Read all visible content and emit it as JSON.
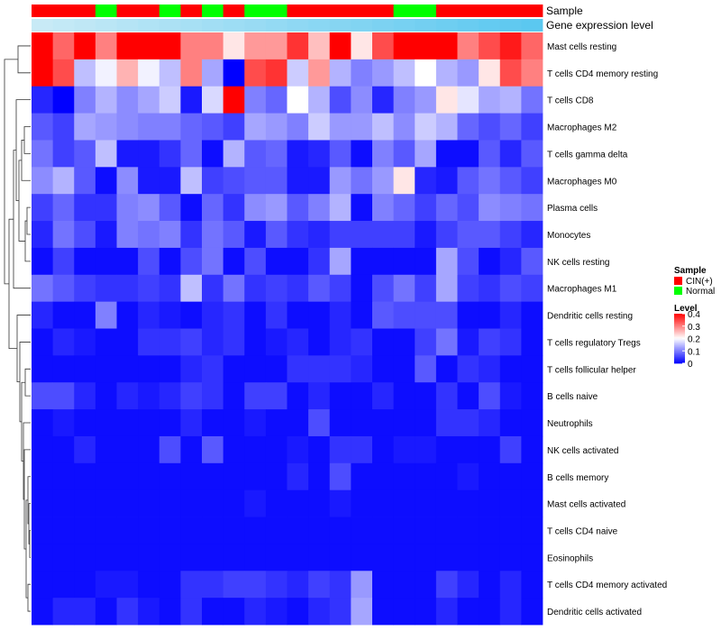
{
  "chart_data": {
    "type": "heatmap",
    "annotation_tracks": [
      {
        "name": "Sample",
        "labels": [
          "CIN(+)",
          "CIN(+)",
          "CIN(+)",
          "Normal",
          "CIN(+)",
          "CIN(+)",
          "Normal",
          "CIN(+)",
          "Normal",
          "CIN(+)",
          "Normal",
          "Normal",
          "CIN(+)",
          "CIN(+)",
          "CIN(+)",
          "CIN(+)",
          "CIN(+)",
          "Normal",
          "Normal",
          "CIN(+)",
          "CIN(+)",
          "CIN(+)",
          "CIN(+)",
          "CIN(+)"
        ]
      },
      {
        "name": "Gene expression level",
        "values": [
          0,
          1,
          2,
          3,
          4,
          5,
          6,
          7,
          8,
          9,
          10,
          11,
          12,
          13,
          14,
          15,
          16,
          17,
          18,
          19,
          20,
          21,
          22,
          23
        ]
      }
    ],
    "rows": [
      "Mast cells resting",
      "T cells CD4 memory resting",
      "T cells CD8",
      "Macrophages M2",
      "T cells gamma delta",
      "Macrophages M0",
      "Plasma cells",
      "Monocytes",
      "NK cells resting",
      "Macrophages M1",
      "Dendritic cells resting",
      "T cells regulatory  Tregs",
      "T cells follicular helper",
      "B cells naive",
      "Neutrophils",
      "NK cells activated",
      "B cells memory",
      "Mast cells activated",
      "T cells CD4 naive",
      "Eosinophils",
      "T cells CD4 memory activated",
      "Dendritic cells activated"
    ],
    "values": [
      [
        0.4,
        0.32,
        0.4,
        0.3,
        0.4,
        0.4,
        0.4,
        0.3,
        0.3,
        0.22,
        0.28,
        0.28,
        0.36,
        0.25,
        0.4,
        0.22,
        0.34,
        0.4,
        0.4,
        0.4,
        0.3,
        0.34,
        0.38,
        0.32
      ],
      [
        0.4,
        0.34,
        0.15,
        0.19,
        0.26,
        0.19,
        0.15,
        0.3,
        0.13,
        0.0,
        0.34,
        0.36,
        0.16,
        0.28,
        0.14,
        0.1,
        0.12,
        0.15,
        0.2,
        0.14,
        0.12,
        0.22,
        0.34,
        0.3
      ],
      [
        0.03,
        0.0,
        0.1,
        0.14,
        0.11,
        0.13,
        0.16,
        0.02,
        0.17,
        0.4,
        0.1,
        0.08,
        0.2,
        0.14,
        0.06,
        0.11,
        0.03,
        0.1,
        0.12,
        0.22,
        0.18,
        0.13,
        0.14,
        0.09
      ],
      [
        0.07,
        0.05,
        0.13,
        0.12,
        0.11,
        0.1,
        0.1,
        0.08,
        0.07,
        0.05,
        0.13,
        0.12,
        0.1,
        0.16,
        0.12,
        0.12,
        0.15,
        0.11,
        0.16,
        0.14,
        0.08,
        0.06,
        0.08,
        0.05
      ],
      [
        0.09,
        0.05,
        0.07,
        0.15,
        0.02,
        0.02,
        0.04,
        0.08,
        0.01,
        0.14,
        0.07,
        0.08,
        0.02,
        0.03,
        0.07,
        0.01,
        0.1,
        0.07,
        0.13,
        0.01,
        0.01,
        0.07,
        0.03,
        0.07
      ],
      [
        0.11,
        0.14,
        0.07,
        0.01,
        0.11,
        0.02,
        0.02,
        0.15,
        0.05,
        0.06,
        0.07,
        0.07,
        0.02,
        0.02,
        0.12,
        0.09,
        0.12,
        0.22,
        0.03,
        0.02,
        0.07,
        0.09,
        0.07,
        0.05
      ],
      [
        0.05,
        0.08,
        0.04,
        0.04,
        0.1,
        0.11,
        0.07,
        0.01,
        0.08,
        0.04,
        0.11,
        0.12,
        0.07,
        0.1,
        0.14,
        0.01,
        0.1,
        0.08,
        0.05,
        0.08,
        0.06,
        0.11,
        0.1,
        0.09
      ],
      [
        0.03,
        0.09,
        0.06,
        0.02,
        0.1,
        0.09,
        0.1,
        0.04,
        0.09,
        0.07,
        0.02,
        0.07,
        0.04,
        0.03,
        0.05,
        0.05,
        0.05,
        0.05,
        0.02,
        0.05,
        0.07,
        0.07,
        0.05,
        0.03
      ],
      [
        0.01,
        0.05,
        0.01,
        0.01,
        0.01,
        0.06,
        0.01,
        0.06,
        0.09,
        0.01,
        0.06,
        0.01,
        0.01,
        0.04,
        0.13,
        0.01,
        0.01,
        0.01,
        0.01,
        0.13,
        0.06,
        0.01,
        0.03,
        0.07
      ],
      [
        0.09,
        0.07,
        0.05,
        0.04,
        0.04,
        0.05,
        0.04,
        0.15,
        0.04,
        0.09,
        0.04,
        0.05,
        0.04,
        0.07,
        0.05,
        0.01,
        0.06,
        0.09,
        0.05,
        0.13,
        0.05,
        0.04,
        0.06,
        0.05
      ],
      [
        0.03,
        0.01,
        0.01,
        0.1,
        0.01,
        0.03,
        0.02,
        0.01,
        0.03,
        0.04,
        0.01,
        0.04,
        0.01,
        0.01,
        0.03,
        0.01,
        0.07,
        0.06,
        0.06,
        0.06,
        0.01,
        0.01,
        0.03,
        0.01
      ],
      [
        0.01,
        0.03,
        0.02,
        0.01,
        0.01,
        0.04,
        0.04,
        0.05,
        0.03,
        0.04,
        0.01,
        0.02,
        0.03,
        0.01,
        0.03,
        0.04,
        0.01,
        0.01,
        0.05,
        0.09,
        0.02,
        0.05,
        0.04,
        0.01
      ],
      [
        0.01,
        0.01,
        0.01,
        0.01,
        0.01,
        0.01,
        0.01,
        0.03,
        0.04,
        0.01,
        0.01,
        0.01,
        0.04,
        0.04,
        0.04,
        0.03,
        0.01,
        0.01,
        0.07,
        0.01,
        0.04,
        0.03,
        0.01,
        0.01
      ],
      [
        0.06,
        0.06,
        0.03,
        0.01,
        0.03,
        0.02,
        0.03,
        0.05,
        0.04,
        0.01,
        0.05,
        0.05,
        0.01,
        0.03,
        0.01,
        0.01,
        0.03,
        0.01,
        0.01,
        0.04,
        0.01,
        0.06,
        0.02,
        0.01
      ],
      [
        0.01,
        0.02,
        0.01,
        0.01,
        0.01,
        0.01,
        0.01,
        0.03,
        0.01,
        0.01,
        0.02,
        0.01,
        0.01,
        0.06,
        0.01,
        0.01,
        0.01,
        0.01,
        0.01,
        0.04,
        0.04,
        0.03,
        0.01,
        0.01
      ],
      [
        0.01,
        0.01,
        0.03,
        0.01,
        0.01,
        0.01,
        0.06,
        0.01,
        0.07,
        0.01,
        0.01,
        0.01,
        0.02,
        0.01,
        0.04,
        0.04,
        0.01,
        0.02,
        0.02,
        0.01,
        0.01,
        0.01,
        0.05,
        0.01
      ],
      [
        0.01,
        0.01,
        0.01,
        0.01,
        0.01,
        0.01,
        0.01,
        0.01,
        0.01,
        0.01,
        0.01,
        0.01,
        0.03,
        0.01,
        0.06,
        0.01,
        0.01,
        0.01,
        0.01,
        0.01,
        0.02,
        0.01,
        0.01,
        0.01
      ],
      [
        0.01,
        0.01,
        0.01,
        0.01,
        0.01,
        0.01,
        0.01,
        0.01,
        0.01,
        0.01,
        0.02,
        0.01,
        0.01,
        0.01,
        0.02,
        0.01,
        0.01,
        0.01,
        0.01,
        0.01,
        0.01,
        0.01,
        0.01,
        0.01
      ],
      [
        0.01,
        0.01,
        0.01,
        0.01,
        0.01,
        0.01,
        0.01,
        0.01,
        0.01,
        0.01,
        0.01,
        0.01,
        0.01,
        0.01,
        0.01,
        0.01,
        0.01,
        0.01,
        0.01,
        0.01,
        0.01,
        0.01,
        0.01,
        0.01
      ],
      [
        0.01,
        0.01,
        0.01,
        0.01,
        0.01,
        0.01,
        0.01,
        0.01,
        0.01,
        0.01,
        0.01,
        0.01,
        0.01,
        0.01,
        0.01,
        0.01,
        0.01,
        0.01,
        0.01,
        0.01,
        0.01,
        0.01,
        0.01,
        0.01
      ],
      [
        0.01,
        0.01,
        0.01,
        0.02,
        0.02,
        0.01,
        0.01,
        0.04,
        0.04,
        0.05,
        0.05,
        0.04,
        0.03,
        0.05,
        0.04,
        0.12,
        0.01,
        0.01,
        0.01,
        0.05,
        0.03,
        0.01,
        0.03,
        0.01
      ],
      [
        0.01,
        0.03,
        0.03,
        0.01,
        0.04,
        0.02,
        0.01,
        0.04,
        0.01,
        0.01,
        0.03,
        0.02,
        0.01,
        0.03,
        0.04,
        0.13,
        0.01,
        0.01,
        0.01,
        0.03,
        0.01,
        0.01,
        0.03,
        0.01
      ]
    ],
    "color_scale": {
      "min": 0,
      "max": 0.4,
      "low": "#0000ff",
      "mid": "#ffffff",
      "high": "#ff0000",
      "mid_value": 0.2
    },
    "legends": {
      "sample": {
        "title": "Sample",
        "entries": [
          {
            "label": "CIN(+)",
            "color": "#ff0000"
          },
          {
            "label": "Normal",
            "color": "#00ff00"
          }
        ]
      },
      "level": {
        "title": "Level",
        "ticks": [
          "0.4",
          "0.3",
          "0.2",
          "0.1",
          "0"
        ],
        "tick_values": [
          0.4,
          0.3,
          0.2,
          0.1,
          0
        ]
      }
    },
    "gene_track_colors": {
      "light": "#c8eaf6",
      "dark": "#5bc8f0"
    }
  }
}
